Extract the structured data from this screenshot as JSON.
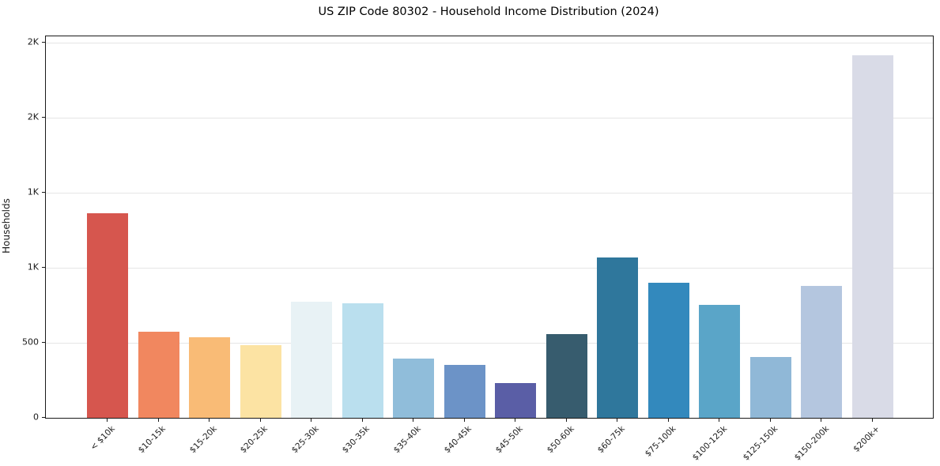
{
  "title": "US ZIP Code 80302 - Household Income Distribution (2024)",
  "chart_data": {
    "type": "bar",
    "title": "US ZIP Code 80302 - Household Income Distribution (2024)",
    "xlabel": "",
    "ylabel": "Households",
    "categories": [
      "< $10k",
      "$10-15k",
      "$15-20k",
      "$20-25k",
      "$25-30k",
      "$30-35k",
      "$35-40k",
      "$40-45k",
      "$45-50k",
      "$50-60k",
      "$60-75k",
      "$75-100k",
      "$100-125k",
      "$125-150k",
      "$150-200k",
      "$200k+"
    ],
    "values": [
      1360,
      575,
      535,
      485,
      775,
      760,
      395,
      355,
      230,
      560,
      1065,
      900,
      750,
      405,
      880,
      2415
    ],
    "bar_colors": [
      "#d6564e",
      "#f1875f",
      "#f9bb76",
      "#fce3a3",
      "#e8f2f5",
      "#badfee",
      "#90bdda",
      "#6c93c7",
      "#5a5ea6",
      "#375c6e",
      "#2f779c",
      "#3389bd",
      "#5aa5c8",
      "#90b8d7",
      "#b4c6df",
      "#d9dbe7"
    ],
    "ylim": [
      0,
      2540
    ],
    "yticks": {
      "values": [
        0,
        500,
        1000,
        1500,
        2000,
        2500
      ],
      "labels": [
        "0",
        "500",
        "1K",
        "1K",
        "2K",
        "2K"
      ]
    },
    "grid": "horizontal",
    "legend": "none",
    "xtick_rotation_deg": 45,
    "background_color": "#ffffff",
    "gridline_color": "#e5e5e5",
    "spine_color": "#1a1a1a",
    "text_color": "#1a1a1a"
  }
}
